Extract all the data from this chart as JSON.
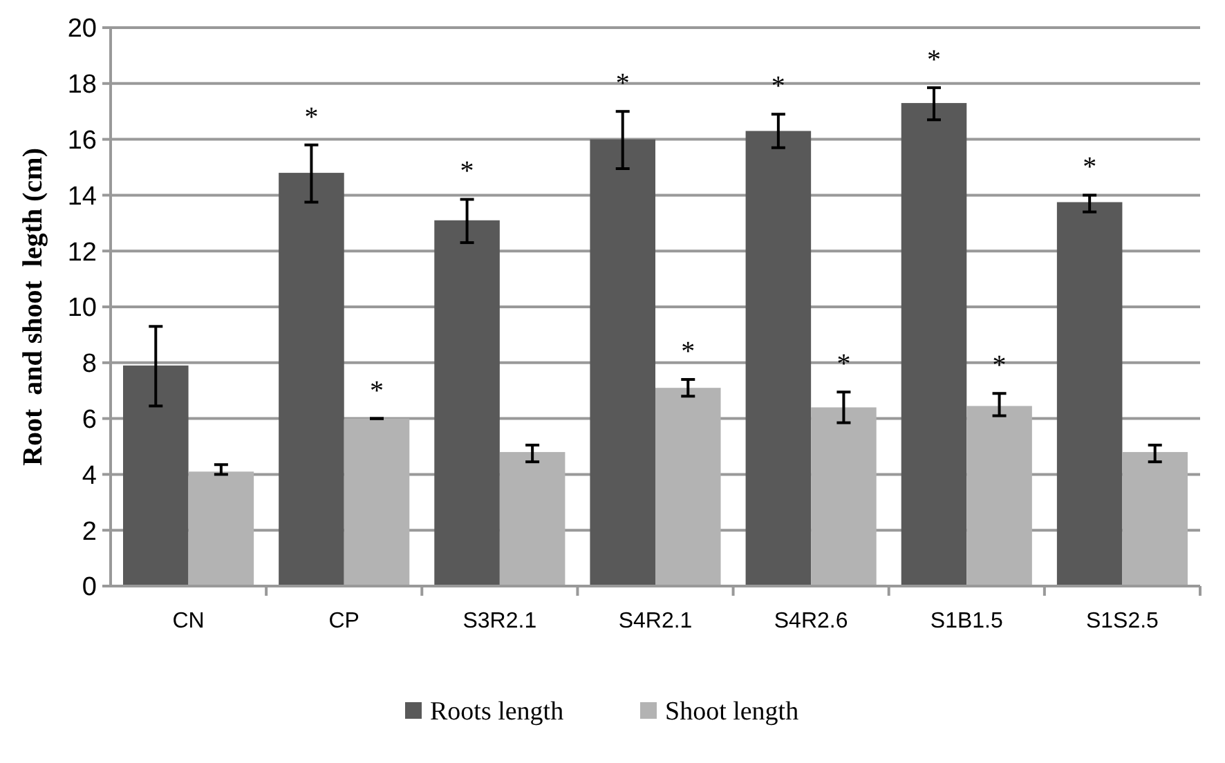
{
  "chart_data": {
    "type": "bar",
    "ylabel": "Root  and shoot  legth (cm)",
    "categories": [
      "CN",
      "CP",
      "S3R2.1",
      "S4R2.1",
      "S4R2.6",
      "S1B1.5",
      "S1S2.5"
    ],
    "series": [
      {
        "name": "Roots length",
        "color": "#595959",
        "values": [
          7.9,
          14.8,
          13.1,
          16,
          16.3,
          17.3,
          13.75
        ],
        "errors": [
          [
            6.45,
            9.3
          ],
          [
            13.75,
            15.8
          ],
          [
            12.3,
            13.85
          ],
          [
            14.95,
            17.0
          ],
          [
            15.7,
            16.9
          ],
          [
            16.7,
            17.85
          ],
          [
            13.4,
            14.0
          ]
        ],
        "value_labels": [
          null,
          "*",
          "*",
          "*",
          "*",
          "*",
          "*"
        ]
      },
      {
        "name": "Shoot length",
        "color": "#b3b3b3",
        "values": [
          4.1,
          6.0,
          4.8,
          7.1,
          6.4,
          6.45,
          4.8
        ],
        "errors": [
          [
            4.0,
            4.35
          ],
          [
            6.0,
            6.0
          ],
          [
            4.45,
            5.05
          ],
          [
            6.8,
            7.4
          ],
          [
            5.85,
            6.95
          ],
          [
            6.1,
            6.9
          ],
          [
            4.45,
            5.05
          ]
        ],
        "value_labels": [
          null,
          "*",
          null,
          "*",
          "*",
          "*",
          null
        ]
      }
    ],
    "ylim": [
      0,
      20
    ],
    "yticks": [
      0,
      2,
      4,
      6,
      8,
      10,
      12,
      14,
      16,
      18,
      20
    ],
    "grid": "y",
    "legend": "bottom"
  }
}
